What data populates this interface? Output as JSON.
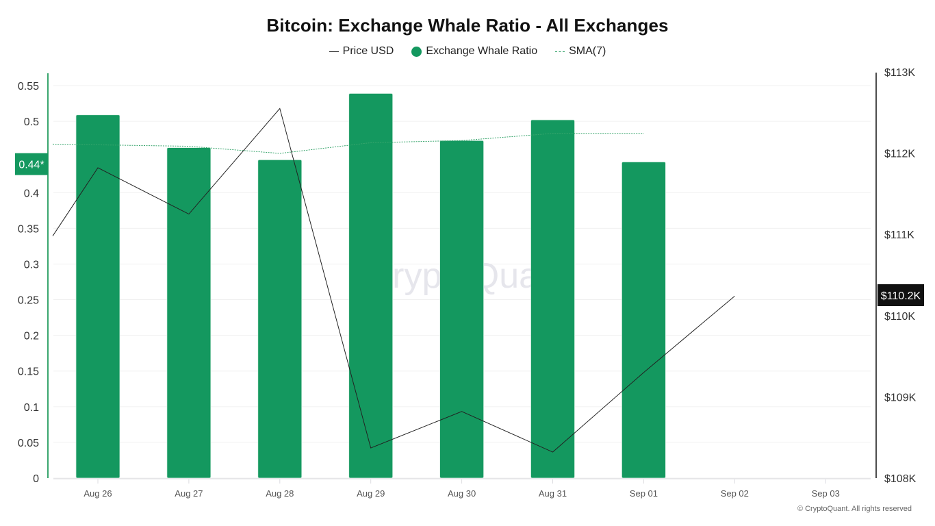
{
  "chart_data": {
    "type": "bar",
    "title": "Bitcoin: Exchange Whale Ratio - All Exchanges",
    "xlabel": "",
    "ylabel": "",
    "categories": [
      "Aug 26",
      "Aug 27",
      "Aug 28",
      "Aug 29",
      "Aug 30",
      "Aug 31",
      "Sep 01",
      "Sep 02",
      "Sep 03"
    ],
    "series": [
      {
        "name": "Exchange Whale Ratio",
        "type": "bar",
        "axis": "left",
        "color": "#14985f",
        "values": [
          0.509,
          0.463,
          0.446,
          0.539,
          0.473,
          0.502,
          0.443,
          null,
          null
        ]
      },
      {
        "name": "SMA(7)",
        "type": "line",
        "style": "dashed",
        "axis": "left",
        "color": "#3aa66e",
        "start_value": 0.468,
        "values": [
          0.467,
          0.465,
          0.455,
          0.47,
          0.473,
          0.483,
          0.483,
          null,
          null
        ]
      },
      {
        "name": "Price USD",
        "type": "line",
        "axis": "right",
        "color": "#222222",
        "unit": "USD thousands",
        "start_value": 110.98,
        "values": [
          111.82,
          111.25,
          112.55,
          108.37,
          108.82,
          108.32,
          109.3,
          110.24,
          null
        ]
      }
    ],
    "left_axis": {
      "ylim": [
        0,
        0.55
      ],
      "ticks": [
        "0",
        "0.05",
        "0.1",
        "0.15",
        "0.2",
        "0.25",
        "0.3",
        "0.35",
        "0.4",
        "0.5",
        "0.55"
      ],
      "current_label": "0.44*",
      "current_value": 0.44
    },
    "right_axis": {
      "ylim": [
        108,
        113
      ],
      "ticks": [
        "$108K",
        "$109K",
        "$110K",
        "$111K",
        "$112K",
        "$113K"
      ],
      "current_label": "$110.2K",
      "current_value": 110.2
    },
    "grid": true,
    "legend_position": "top",
    "legend": [
      "Price USD",
      "Exchange Whale Ratio",
      "SMA(7)"
    ]
  },
  "header": {
    "title": "Bitcoin: Exchange Whale Ratio - All Exchanges"
  },
  "legend": {
    "price": "Price USD",
    "whale": "Exchange Whale Ratio",
    "sma": "SMA(7)"
  },
  "colors": {
    "bar": "#14985f",
    "sma": "#3aa66e",
    "price": "#222222",
    "left_axis": "#3aa66e",
    "right_axis": "#111111",
    "left_badge": "#14985f",
    "right_badge": "#111111"
  },
  "watermark": "CryptoQuant",
  "footer": {
    "copyright": "© CryptoQuant. All rights reserved"
  }
}
